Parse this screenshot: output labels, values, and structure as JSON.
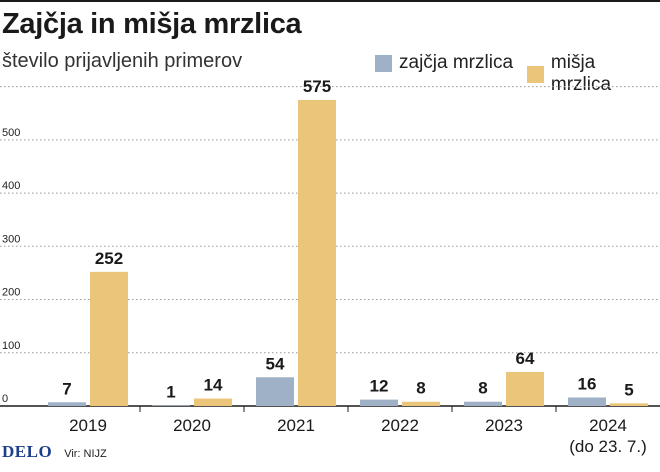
{
  "title": "Zajčja in mišja mrzlica",
  "subtitle": "število prijavljenih primerov",
  "logo": "DELO",
  "source": "Vir: NIJZ",
  "colors": {
    "zajcja": "#9fb1c6",
    "misja": "#eac57a",
    "grid": "#999999",
    "text": "#1a1a1a"
  },
  "chart_data": {
    "type": "bar",
    "title": "Zajčja in mišja mrzlica",
    "ylabel": "število prijavljenih primerov",
    "ylim": [
      0,
      600
    ],
    "yticks": [
      "0",
      "100",
      "200",
      "300",
      "400",
      "500"
    ],
    "grid": true,
    "legend_position": "top-right",
    "categories": [
      {
        "label": "2019",
        "sublabel": ""
      },
      {
        "label": "2020",
        "sublabel": ""
      },
      {
        "label": "2021",
        "sublabel": ""
      },
      {
        "label": "2022",
        "sublabel": ""
      },
      {
        "label": "2023",
        "sublabel": ""
      },
      {
        "label": "2024",
        "sublabel": "(do 23. 7.)"
      }
    ],
    "series": [
      {
        "name": "zajčja mrzlica",
        "color": "#9fb1c6",
        "values": [
          7,
          1,
          54,
          12,
          8,
          16
        ]
      },
      {
        "name": "mišja mrzlica",
        "color": "#eac57a",
        "values": [
          252,
          14,
          575,
          8,
          64,
          5
        ]
      }
    ]
  }
}
